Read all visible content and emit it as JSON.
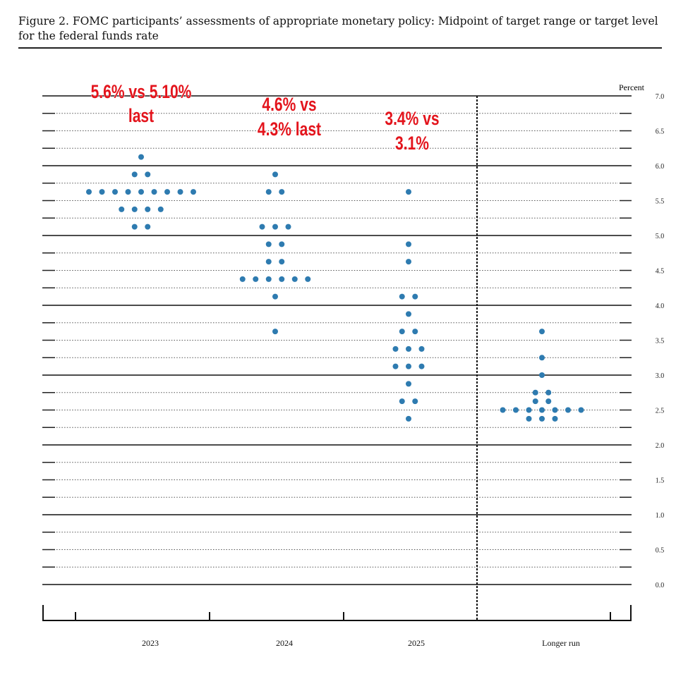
{
  "chart_data": {
    "type": "scatter",
    "title": "Figure 2.  FOMC participants’ assessments of appropriate monetary policy: Midpoint of target range or target level for the federal funds rate",
    "ylabel": "Percent",
    "ylim": [
      0,
      7
    ],
    "y_ticks": [
      "0.0",
      "0.5",
      "1.0",
      "1.5",
      "2.0",
      "2.5",
      "3.0",
      "3.5",
      "4.0",
      "4.5",
      "5.0",
      "5.5",
      "6.0",
      "6.5",
      "7.0"
    ],
    "categories": [
      "2023",
      "2024",
      "2025",
      "Longer run"
    ],
    "dot_color": "#2e7bb0",
    "annotation_color": "#e3141c",
    "grid": "dotted every 0.25, solid at whole percents",
    "series": [
      {
        "category": "2023",
        "dots": [
          {
            "y": 6.125,
            "count": 1
          },
          {
            "y": 5.875,
            "count": 2
          },
          {
            "y": 5.625,
            "count": 9
          },
          {
            "y": 5.375,
            "count": 4
          },
          {
            "y": 5.125,
            "count": 2
          }
        ]
      },
      {
        "category": "2024",
        "dots": [
          {
            "y": 5.875,
            "count": 1
          },
          {
            "y": 5.625,
            "count": 2
          },
          {
            "y": 5.125,
            "count": 3
          },
          {
            "y": 4.875,
            "count": 2
          },
          {
            "y": 4.625,
            "count": 2
          },
          {
            "y": 4.375,
            "count": 6
          },
          {
            "y": 4.125,
            "count": 1
          },
          {
            "y": 3.625,
            "count": 1
          }
        ]
      },
      {
        "category": "2025",
        "dots": [
          {
            "y": 5.625,
            "count": 1
          },
          {
            "y": 4.875,
            "count": 1
          },
          {
            "y": 4.625,
            "count": 1
          },
          {
            "y": 4.125,
            "count": 2
          },
          {
            "y": 3.875,
            "count": 1
          },
          {
            "y": 3.625,
            "count": 2
          },
          {
            "y": 3.375,
            "count": 3
          },
          {
            "y": 3.125,
            "count": 3
          },
          {
            "y": 2.875,
            "count": 1
          },
          {
            "y": 2.625,
            "count": 2
          },
          {
            "y": 2.375,
            "count": 1
          }
        ]
      },
      {
        "category": "Longer run",
        "dots": [
          {
            "y": 3.625,
            "count": 1
          },
          {
            "y": 3.25,
            "count": 1
          },
          {
            "y": 3.0,
            "count": 1
          },
          {
            "y": 2.75,
            "count": 2
          },
          {
            "y": 2.625,
            "count": 2
          },
          {
            "y": 2.5,
            "count": 7
          },
          {
            "y": 2.375,
            "count": 3
          }
        ]
      }
    ],
    "annotations": [
      {
        "lines": [
          "5.6% vs 5.10%",
          "last"
        ]
      },
      {
        "lines": [
          "4.6% vs",
          "4.3% last"
        ]
      },
      {
        "lines": [
          "3.4% vs",
          "3.1%"
        ]
      }
    ]
  }
}
